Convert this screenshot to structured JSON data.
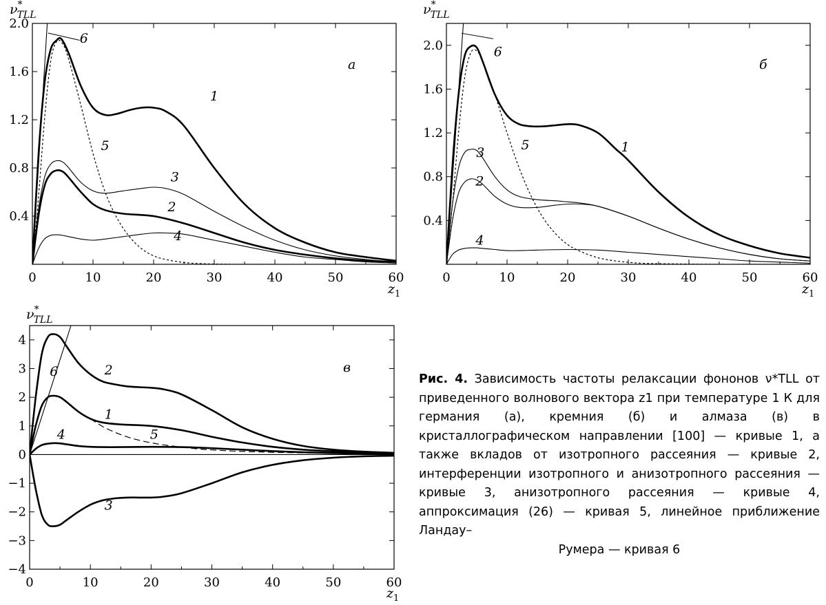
{
  "panels": [
    {
      "id": "a",
      "panel_label": "a",
      "ylabel": "ν*TLL",
      "xlabel": "z1",
      "xticks": [
        "0",
        "10",
        "20",
        "30",
        "40",
        "50",
        "60"
      ],
      "yticks": [
        "2.0",
        "1.6",
        "1.2",
        "0.8",
        "0.4"
      ],
      "annotations": [
        "1",
        "2",
        "3",
        "4",
        "5",
        "6"
      ]
    },
    {
      "id": "b",
      "panel_label": "б",
      "ylabel": "ν*TLL",
      "xlabel": "z1",
      "xticks": [
        "0",
        "10",
        "20",
        "30",
        "40",
        "50",
        "60"
      ],
      "yticks": [
        "2.0",
        "1.6",
        "1.2",
        "0.8",
        "0.4"
      ],
      "annotations": [
        "1",
        "2",
        "3",
        "4",
        "5",
        "6"
      ]
    },
    {
      "id": "c",
      "panel_label": "в",
      "ylabel": "ν*TLL",
      "xlabel": "z1",
      "xticks": [
        "0",
        "10",
        "20",
        "30",
        "40",
        "50",
        "60"
      ],
      "yticks": [
        "4",
        "3",
        "2",
        "1",
        "0",
        "-1",
        "-2",
        "-3",
        "-4"
      ],
      "annotations": [
        "1",
        "2",
        "3",
        "4",
        "5",
        "6"
      ]
    }
  ],
  "caption": {
    "label": "Рис. 4.",
    "text": "Зависимость частоты релаксации фононов ν*TLL от приведенного волнового вектора z1 при температуре 1 К для германия (а), кремния (б) и алмаза (в) в кристаллографическом направлении [100] — кривые 1, а также вкладов от изотропного рассеяния — кривые 2, интерференции изотропного и анизотропного рассеяния — кривые 3, анизотропного рассеяния — кривые 4, аппроксимация (26) — кривая 5, линейное приближение Ландау–",
    "last_line": "Румера — кривая 6"
  },
  "chart_data": [
    {
      "type": "line",
      "xlim": [
        0,
        60
      ],
      "ylim": [
        0,
        2.0
      ],
      "series": [
        {
          "name": "1",
          "style": "thick",
          "x": [
            0,
            1,
            2,
            3,
            4,
            4.8,
            6,
            8,
            10,
            12,
            14,
            16,
            18,
            20,
            22,
            25,
            30,
            35,
            40,
            45,
            50,
            55,
            60
          ],
          "y": [
            0,
            0.9,
            1.5,
            1.78,
            1.86,
            1.87,
            1.75,
            1.48,
            1.3,
            1.24,
            1.25,
            1.28,
            1.3,
            1.3,
            1.27,
            1.15,
            0.8,
            0.5,
            0.3,
            0.18,
            0.1,
            0.06,
            0.03
          ]
        },
        {
          "name": "2",
          "style": "thick",
          "x": [
            0,
            1,
            2,
            3,
            4,
            5,
            6,
            8,
            10,
            12,
            15,
            20,
            25,
            30,
            35,
            40,
            45,
            50,
            55,
            60
          ],
          "y": [
            0,
            0.4,
            0.65,
            0.75,
            0.78,
            0.77,
            0.72,
            0.6,
            0.5,
            0.45,
            0.42,
            0.4,
            0.34,
            0.26,
            0.18,
            0.12,
            0.08,
            0.05,
            0.03,
            0.02
          ]
        },
        {
          "name": "3",
          "style": "thin",
          "x": [
            0,
            1,
            2,
            3,
            4,
            5,
            6,
            8,
            10,
            12,
            15,
            18,
            20,
            22,
            25,
            30,
            35,
            40,
            45,
            50,
            55,
            60
          ],
          "y": [
            0,
            0.45,
            0.72,
            0.83,
            0.86,
            0.85,
            0.8,
            0.68,
            0.61,
            0.59,
            0.61,
            0.63,
            0.64,
            0.63,
            0.58,
            0.44,
            0.31,
            0.2,
            0.12,
            0.07,
            0.04,
            0.02
          ]
        },
        {
          "name": "4",
          "style": "thin",
          "x": [
            0,
            1,
            2,
            3,
            4,
            5,
            6,
            8,
            10,
            12,
            15,
            18,
            20,
            22,
            25,
            30,
            35,
            40,
            45,
            50,
            55,
            60
          ],
          "y": [
            0,
            0.13,
            0.21,
            0.24,
            0.245,
            0.24,
            0.23,
            0.21,
            0.2,
            0.21,
            0.23,
            0.25,
            0.26,
            0.26,
            0.25,
            0.2,
            0.15,
            0.1,
            0.06,
            0.04,
            0.02,
            0.01
          ]
        },
        {
          "name": "5",
          "style": "dashed",
          "x": [
            0,
            1,
            2,
            3,
            4,
            5,
            6,
            8,
            10,
            12,
            14,
            16,
            18,
            20,
            22,
            25,
            28,
            32,
            36,
            40
          ],
          "y": [
            0,
            0.55,
            1.2,
            1.68,
            1.85,
            1.83,
            1.7,
            1.32,
            0.92,
            0.6,
            0.38,
            0.23,
            0.13,
            0.07,
            0.04,
            0.015,
            0.005,
            0.001,
            0,
            0
          ]
        },
        {
          "name": "6",
          "style": "thin",
          "x": [
            0,
            2.45
          ],
          "y": [
            0,
            2.0
          ]
        }
      ]
    },
    {
      "type": "line",
      "xlim": [
        0,
        60
      ],
      "ylim": [
        0,
        2.2
      ],
      "series": [
        {
          "name": "1",
          "style": "thick",
          "x": [
            0,
            1,
            2,
            3,
            4,
            5,
            6,
            8,
            10,
            12,
            14,
            16,
            18,
            20,
            22,
            25,
            28,
            30,
            35,
            40,
            45,
            50,
            55,
            60
          ],
          "y": [
            0,
            0.9,
            1.55,
            1.9,
            1.99,
            1.98,
            1.85,
            1.55,
            1.36,
            1.28,
            1.26,
            1.26,
            1.27,
            1.28,
            1.27,
            1.2,
            1.05,
            0.95,
            0.66,
            0.43,
            0.27,
            0.17,
            0.1,
            0.06
          ]
        },
        {
          "name": "2",
          "style": "thin",
          "x": [
            0,
            1,
            2,
            3,
            4,
            5,
            6,
            8,
            10,
            12,
            15,
            18,
            20,
            22,
            25,
            30,
            35,
            40,
            45,
            50,
            55,
            60
          ],
          "y": [
            0,
            0.4,
            0.65,
            0.75,
            0.78,
            0.77,
            0.73,
            0.62,
            0.55,
            0.52,
            0.52,
            0.54,
            0.55,
            0.55,
            0.53,
            0.44,
            0.33,
            0.23,
            0.15,
            0.09,
            0.05,
            0.03
          ]
        },
        {
          "name": "3",
          "style": "thin",
          "x": [
            0,
            1,
            2,
            3,
            4,
            5,
            6,
            8,
            10,
            12,
            15,
            18,
            20,
            22,
            25,
            30,
            35,
            40,
            45,
            50,
            55,
            60
          ],
          "y": [
            0,
            0.55,
            0.88,
            1.02,
            1.05,
            1.04,
            0.97,
            0.8,
            0.68,
            0.62,
            0.59,
            0.58,
            0.57,
            0.56,
            0.53,
            0.44,
            0.33,
            0.23,
            0.15,
            0.09,
            0.05,
            0.03
          ]
        },
        {
          "name": "4",
          "style": "thin",
          "x": [
            0,
            1,
            2,
            3,
            4,
            5,
            6,
            8,
            10,
            12,
            15,
            20,
            25,
            30,
            35,
            40,
            45,
            50,
            55,
            60
          ],
          "y": [
            0,
            0.09,
            0.13,
            0.145,
            0.15,
            0.15,
            0.145,
            0.135,
            0.125,
            0.125,
            0.13,
            0.135,
            0.13,
            0.11,
            0.09,
            0.07,
            0.05,
            0.03,
            0.02,
            0.01
          ]
        },
        {
          "name": "5",
          "style": "dashed",
          "x": [
            0,
            1,
            2,
            3,
            4,
            5,
            6,
            8,
            10,
            12,
            14,
            16,
            18,
            20,
            22,
            25,
            28,
            32,
            36,
            40,
            45,
            50,
            55,
            60
          ],
          "y": [
            0,
            0.55,
            1.2,
            1.7,
            1.93,
            1.95,
            1.85,
            1.55,
            1.2,
            0.88,
            0.62,
            0.42,
            0.28,
            0.18,
            0.12,
            0.06,
            0.03,
            0.01,
            0.005,
            0.002,
            0,
            0,
            0,
            0
          ]
        },
        {
          "name": "6",
          "style": "thin",
          "x": [
            0,
            2.8
          ],
          "y": [
            0,
            2.2
          ]
        }
      ]
    },
    {
      "type": "line",
      "xlim": [
        0,
        60
      ],
      "ylim": [
        -4,
        4.5
      ],
      "series": [
        {
          "name": "1",
          "style": "thick",
          "x": [
            0,
            1,
            2,
            3,
            4,
            5,
            6,
            8,
            10,
            12,
            15,
            20,
            25,
            30,
            35,
            40,
            45,
            50,
            55,
            60
          ],
          "y": [
            0,
            1.0,
            1.7,
            2.0,
            2.05,
            2.0,
            1.85,
            1.5,
            1.25,
            1.12,
            1.05,
            1.0,
            0.85,
            0.62,
            0.42,
            0.27,
            0.17,
            0.11,
            0.07,
            0.05
          ]
        },
        {
          "name": "2",
          "style": "thick",
          "x": [
            0,
            1,
            2,
            3,
            4,
            5,
            6,
            8,
            10,
            12,
            14,
            16,
            18,
            20,
            22,
            25,
            30,
            35,
            40,
            45,
            50,
            55,
            60
          ],
          "y": [
            0,
            2.0,
            3.5,
            4.1,
            4.2,
            4.1,
            3.8,
            3.2,
            2.8,
            2.55,
            2.45,
            2.38,
            2.35,
            2.33,
            2.28,
            2.1,
            1.55,
            0.95,
            0.55,
            0.3,
            0.17,
            0.1,
            0.06
          ]
        },
        {
          "name": "3",
          "style": "thick",
          "x": [
            0,
            1,
            2,
            3,
            4,
            5,
            6,
            8,
            10,
            12,
            14,
            16,
            18,
            20,
            22,
            25,
            30,
            35,
            40,
            45,
            50,
            55,
            60
          ],
          "y": [
            0,
            -1.2,
            -2.1,
            -2.45,
            -2.5,
            -2.45,
            -2.3,
            -2.0,
            -1.75,
            -1.6,
            -1.53,
            -1.5,
            -1.5,
            -1.5,
            -1.47,
            -1.35,
            -1.0,
            -0.62,
            -0.36,
            -0.2,
            -0.11,
            -0.06,
            -0.04
          ]
        },
        {
          "name": "4",
          "style": "thick",
          "x": [
            0,
            1,
            2,
            3,
            4,
            5,
            6,
            8,
            10,
            12,
            15,
            20,
            25,
            30,
            35,
            40,
            45,
            50,
            55,
            60
          ],
          "y": [
            0,
            0.2,
            0.33,
            0.38,
            0.4,
            0.39,
            0.36,
            0.3,
            0.27,
            0.26,
            0.26,
            0.27,
            0.26,
            0.22,
            0.17,
            0.12,
            0.08,
            0.05,
            0.03,
            0.02
          ]
        },
        {
          "name": "5",
          "style": "dashed",
          "x": [
            10,
            12,
            14,
            16,
            18,
            20,
            22,
            25,
            28,
            30,
            35,
            40,
            45,
            50,
            55,
            60
          ],
          "y": [
            1.25,
            0.98,
            0.78,
            0.62,
            0.5,
            0.41,
            0.34,
            0.26,
            0.19,
            0.16,
            0.11,
            0.08,
            0.06,
            0.05,
            0.04,
            0.03
          ]
        },
        {
          "name": "6",
          "style": "thin",
          "x": [
            0,
            6.8
          ],
          "y": [
            0,
            4.5
          ]
        },
        {
          "name": "zero",
          "style": "thin",
          "x": [
            0,
            60
          ],
          "y": [
            0,
            0
          ]
        }
      ]
    }
  ]
}
